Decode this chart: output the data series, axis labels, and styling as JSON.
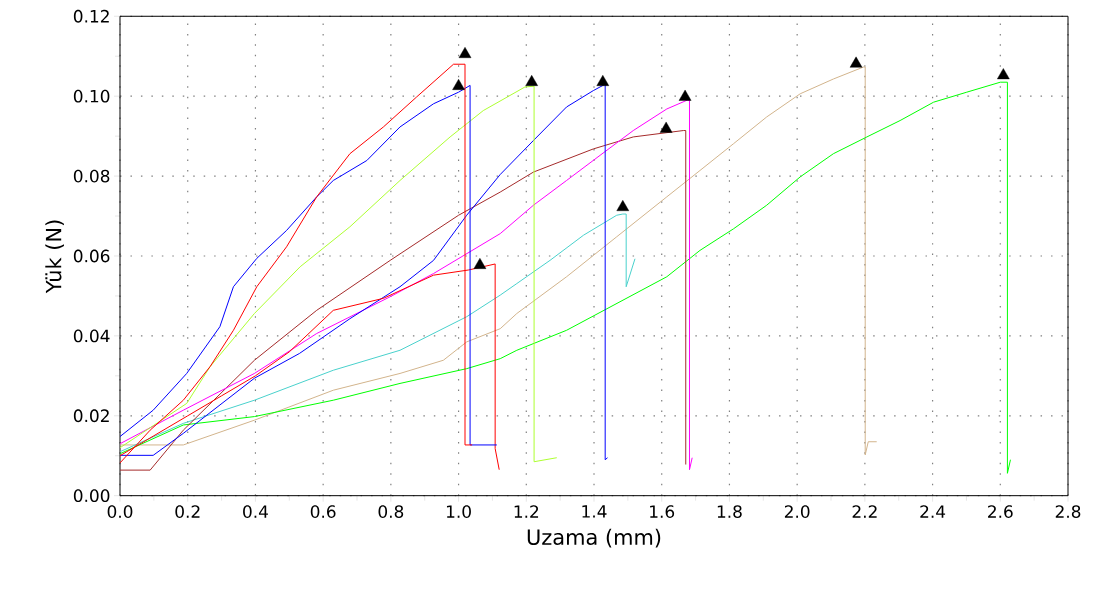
{
  "chart_data": {
    "type": "line",
    "xlabel": "Uzama (mm)",
    "ylabel": "Yük (N)",
    "xlim": [
      0,
      2.8
    ],
    "ylim": [
      0,
      0.12
    ],
    "xticks": [
      {
        "value": 0,
        "label": "0.0"
      },
      {
        "value": 0.2,
        "label": "0.2"
      },
      {
        "value": 0.4,
        "label": "0.4"
      },
      {
        "value": 0.6,
        "label": "0.6"
      },
      {
        "value": 0.8,
        "label": "0.8"
      },
      {
        "value": 1.0,
        "label": "1.0"
      },
      {
        "value": 1.2,
        "label": "1.2"
      },
      {
        "value": 1.4,
        "label": "1.4"
      },
      {
        "value": 1.6,
        "label": "1.6"
      },
      {
        "value": 1.8,
        "label": "1.8"
      },
      {
        "value": 2.0,
        "label": "2.0"
      },
      {
        "value": 2.2,
        "label": "2.2"
      },
      {
        "value": 2.4,
        "label": "2.4"
      },
      {
        "value": 2.6,
        "label": "2.6"
      },
      {
        "value": 2.8,
        "label": "2.8"
      }
    ],
    "yticks": [
      {
        "value": 0,
        "label": "0.00"
      },
      {
        "value": 0.02,
        "label": "0.02"
      },
      {
        "value": 0.04,
        "label": "0.04"
      },
      {
        "value": 0.06,
        "label": "0.06"
      },
      {
        "value": 0.08,
        "label": "0.08"
      },
      {
        "value": 0.1,
        "label": "0.10"
      },
      {
        "value": 0.12,
        "label": "0.12"
      }
    ],
    "grid": true,
    "series": [
      {
        "color": "#d2b48c",
        "x": [
          0,
          0.187,
          0.397,
          0.63,
          0.827,
          0.955,
          1.024,
          1.123,
          1.172,
          1.319,
          1.467,
          1.615,
          1.713,
          1.812,
          1.91,
          2.009,
          2.107,
          2.196,
          2.201,
          2.201,
          2.21,
          2.235
        ],
        "values": [
          0.0127,
          0.0127,
          0.0189,
          0.0264,
          0.0306,
          0.0339,
          0.0385,
          0.0418,
          0.0456,
          0.0548,
          0.0648,
          0.0748,
          0.0814,
          0.0881,
          0.0948,
          0.1006,
          0.1043,
          0.1073,
          0.1073,
          0.0102,
          0.0135,
          0.0135
        ]
      },
      {
        "color": "#00ff00",
        "x": [
          0,
          0.187,
          0.397,
          0.63,
          0.827,
          1.024,
          1.123,
          1.172,
          1.319,
          1.467,
          1.615,
          1.713,
          1.812,
          1.91,
          2.009,
          2.107,
          2.206,
          2.304,
          2.403,
          2.501,
          2.6,
          2.621,
          2.621,
          2.63
        ],
        "values": [
          0.0105,
          0.0177,
          0.0198,
          0.0239,
          0.0281,
          0.0318,
          0.0343,
          0.0364,
          0.0414,
          0.0481,
          0.0548,
          0.0614,
          0.0668,
          0.0727,
          0.0798,
          0.0856,
          0.0898,
          0.0939,
          0.0985,
          0.101,
          0.1035,
          0.1035,
          0.0056,
          0.009
        ]
      },
      {
        "color": "#48d1cc",
        "x": [
          0,
          0.187,
          0.397,
          0.63,
          0.827,
          1.024,
          1.123,
          1.172,
          1.27,
          1.369,
          1.467,
          1.485,
          1.495,
          1.495,
          1.521
        ],
        "values": [
          0.011,
          0.0181,
          0.0239,
          0.0314,
          0.0364,
          0.0448,
          0.0502,
          0.0531,
          0.0589,
          0.0652,
          0.0702,
          0.0705,
          0.0705,
          0.0523,
          0.0593
        ]
      },
      {
        "color": "#a52a2a",
        "x": [
          0,
          0.089,
          0.187,
          0.397,
          0.581,
          0.798,
          1.0,
          1.123,
          1.221,
          1.398,
          1.516,
          1.664,
          1.671,
          1.671
        ],
        "values": [
          0.0064,
          0.0064,
          0.0164,
          0.0339,
          0.0464,
          0.0589,
          0.0702,
          0.076,
          0.081,
          0.0868,
          0.0898,
          0.0914,
          0.0914,
          0.0078
        ]
      },
      {
        "color": "#ff00ff",
        "x": [
          0,
          0.187,
          0.397,
          0.581,
          0.798,
          0.926,
          1.123,
          1.221,
          1.319,
          1.418,
          1.516,
          1.615,
          1.675,
          1.682,
          1.682,
          1.69
        ],
        "values": [
          0.013,
          0.0214,
          0.0306,
          0.0406,
          0.0498,
          0.0556,
          0.0656,
          0.0727,
          0.0789,
          0.0852,
          0.0914,
          0.0968,
          0.099,
          0.099,
          0.0065,
          0.0095
        ]
      },
      {
        "color": "#0000ff",
        "x": [
          0,
          0.098,
          0.187,
          0.397,
          0.53,
          0.679,
          0.827,
          0.926,
          1.024,
          1.123,
          1.221,
          1.319,
          1.398,
          1.433,
          1.433,
          1.44
        ],
        "values": [
          0.0101,
          0.0101,
          0.0156,
          0.0294,
          0.0356,
          0.0443,
          0.0523,
          0.0589,
          0.0702,
          0.0804,
          0.0889,
          0.0973,
          0.1014,
          0.103,
          0.009,
          0.0095
        ]
      },
      {
        "color": "#adff2f",
        "x": [
          0,
          0.197,
          0.266,
          0.397,
          0.532,
          0.679,
          0.827,
          0.975,
          1.073,
          1.196,
          1.223,
          1.223,
          1.29
        ],
        "values": [
          0.012,
          0.0231,
          0.0323,
          0.0456,
          0.0573,
          0.0673,
          0.0789,
          0.0898,
          0.0964,
          0.1023,
          0.1025,
          0.0085,
          0.0095
        ]
      },
      {
        "color": "#ff0000",
        "x": [
          0,
          0.1,
          0.2,
          0.3,
          0.4,
          0.5,
          0.63,
          0.778,
          0.926,
          1.03,
          1.108,
          1.108,
          1.12
        ],
        "values": [
          0.01,
          0.015,
          0.02,
          0.025,
          0.03,
          0.036,
          0.0464,
          0.0494,
          0.0552,
          0.0565,
          0.058,
          0.0118,
          0.0065
        ]
      },
      {
        "color": "#0000ff",
        "x": [
          0,
          0.098,
          0.197,
          0.295,
          0.335,
          0.404,
          0.492,
          0.581,
          0.63,
          0.729,
          0.827,
          0.926,
          1.0,
          1.034,
          1.034,
          1.113
        ],
        "values": [
          0.0148,
          0.0214,
          0.0306,
          0.0423,
          0.0523,
          0.0594,
          0.0664,
          0.0748,
          0.0789,
          0.0839,
          0.0923,
          0.0981,
          0.101,
          0.1027,
          0.0127,
          0.0127
        ]
      },
      {
        "color": "#ff0000",
        "x": [
          0,
          0.089,
          0.187,
          0.266,
          0.335,
          0.404,
          0.492,
          0.581,
          0.679,
          0.778,
          0.876,
          0.985,
          1.019,
          1.019,
          1.04
        ],
        "values": [
          0.0082,
          0.0164,
          0.0239,
          0.0323,
          0.0414,
          0.0523,
          0.0623,
          0.0748,
          0.0856,
          0.0923,
          0.0998,
          0.108,
          0.108,
          0.0127,
          0.0127
        ]
      },
      {
        "type": "scatter",
        "marker": "triangle",
        "color": "#000000",
        "x": [
          1.019,
          1.0,
          1.216,
          1.426,
          1.669,
          1.613,
          1.485,
          1.063,
          2.174,
          2.609
        ],
        "values": [
          0.1105,
          0.1025,
          0.1035,
          0.1035,
          0.0998,
          0.0918,
          0.0722,
          0.0577,
          0.1081,
          0.1052
        ]
      }
    ]
  }
}
